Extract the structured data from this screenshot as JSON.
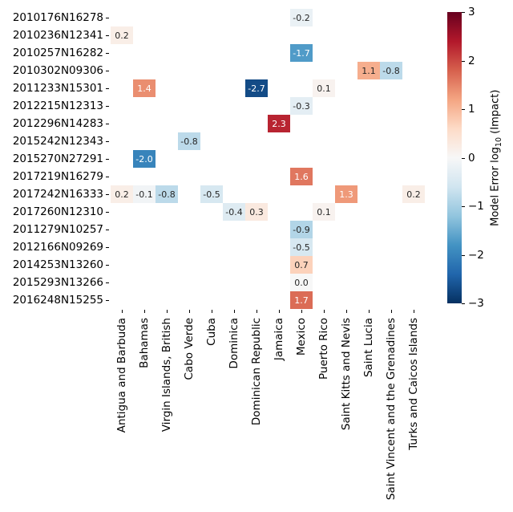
{
  "chart_data": {
    "type": "heatmap",
    "title": "",
    "xlabel": "",
    "ylabel": "",
    "grid": false,
    "background_color": "#ffffff",
    "vmin": -3,
    "vmax": 3,
    "colormap": "RdBu_r",
    "colormap_anchors": [
      "#053061",
      "#2166ac",
      "#4393c3",
      "#92c5de",
      "#d1e5f0",
      "#f7f7f7",
      "#fddbc7",
      "#f4a582",
      "#d6604d",
      "#b2182b",
      "#67001f"
    ],
    "annotation_text_dark": "#262626",
    "annotation_text_light": "#ffffff",
    "rows": [
      "2010176N16278",
      "2010236N12341",
      "2010257N16282",
      "2010302N09306",
      "2011233N15301",
      "2012215N12313",
      "2012296N14283",
      "2015242N12343",
      "2015270N27291",
      "2017219N16279",
      "2017242N16333",
      "2017260N12310",
      "2011279N10257",
      "2012166N09269",
      "2014253N13260",
      "2015293N13266",
      "2016248N15255"
    ],
    "columns": [
      "Antigua and Barbuda",
      "Bahamas",
      "Virgin Islands, British",
      "Cabo Verde",
      "Cuba",
      "Dominica",
      "Dominican Republic",
      "Jamaica",
      "Mexico",
      "Puerto Rico",
      "Saint Kitts and Nevis",
      "Saint Lucia",
      "Saint Vincent and the Grenadines",
      "Turks and Caicos Islands"
    ],
    "cells": [
      {
        "row": 0,
        "col": 8,
        "country": "Mexico",
        "value": -0.2,
        "label": "-0.2"
      },
      {
        "row": 1,
        "col": 0,
        "country": "Antigua and Barbuda",
        "value": 0.2,
        "label": "0.2"
      },
      {
        "row": 2,
        "col": 8,
        "country": "Mexico",
        "value": -1.7,
        "label": "-1.7"
      },
      {
        "row": 3,
        "col": 11,
        "country": "Saint Lucia",
        "value": 1.1,
        "label": "1.1"
      },
      {
        "row": 3,
        "col": 12,
        "country": "Saint Vincent and the Grenadines",
        "value": -0.8,
        "label": "-0.8"
      },
      {
        "row": 4,
        "col": 1,
        "country": "Bahamas",
        "value": 1.4,
        "label": "1.4"
      },
      {
        "row": 4,
        "col": 6,
        "country": "Dominican Republic",
        "value": -2.7,
        "label": "-2.7"
      },
      {
        "row": 4,
        "col": 9,
        "country": "Puerto Rico",
        "value": 0.1,
        "label": "0.1"
      },
      {
        "row": 5,
        "col": 8,
        "country": "Mexico",
        "value": -0.3,
        "label": "-0.3"
      },
      {
        "row": 6,
        "col": 7,
        "country": "Jamaica",
        "value": 2.3,
        "label": "2.3"
      },
      {
        "row": 7,
        "col": 3,
        "country": "Cabo Verde",
        "value": -0.8,
        "label": "-0.8"
      },
      {
        "row": 8,
        "col": 1,
        "country": "Bahamas",
        "value": -2.0,
        "label": "-2.0"
      },
      {
        "row": 9,
        "col": 8,
        "country": "Mexico",
        "value": 1.6,
        "label": "1.6"
      },
      {
        "row": 10,
        "col": 0,
        "country": "Antigua and Barbuda",
        "value": 0.2,
        "label": "0.2"
      },
      {
        "row": 10,
        "col": 1,
        "country": "Bahamas",
        "value": -0.1,
        "label": "-0.1"
      },
      {
        "row": 10,
        "col": 2,
        "country": "Virgin Islands, British",
        "value": -0.8,
        "label": "-0.8"
      },
      {
        "row": 10,
        "col": 4,
        "country": "Cuba",
        "value": -0.5,
        "label": "-0.5"
      },
      {
        "row": 10,
        "col": 10,
        "country": "Saint Kitts and Nevis",
        "value": 1.3,
        "label": "1.3"
      },
      {
        "row": 10,
        "col": 13,
        "country": "Turks and Caicos Islands",
        "value": 0.2,
        "label": "0.2"
      },
      {
        "row": 11,
        "col": 5,
        "country": "Dominica",
        "value": -0.4,
        "label": "-0.4"
      },
      {
        "row": 11,
        "col": 6,
        "country": "Dominican Republic",
        "value": 0.3,
        "label": "0.3"
      },
      {
        "row": 11,
        "col": 9,
        "country": "Puerto Rico",
        "value": 0.1,
        "label": "0.1"
      },
      {
        "row": 12,
        "col": 8,
        "country": "Mexico",
        "value": -0.9,
        "label": "-0.9"
      },
      {
        "row": 13,
        "col": 8,
        "country": "Mexico",
        "value": -0.5,
        "label": "-0.5"
      },
      {
        "row": 14,
        "col": 8,
        "country": "Mexico",
        "value": 0.7,
        "label": "0.7"
      },
      {
        "row": 15,
        "col": 8,
        "country": "Mexico",
        "value": 0.0,
        "label": "0.0"
      },
      {
        "row": 16,
        "col": 8,
        "country": "Mexico",
        "value": 1.7,
        "label": "1.7"
      }
    ],
    "colorbar": {
      "position": "right",
      "tick_values": [
        3,
        2,
        1,
        0,
        -1,
        -2,
        -3
      ],
      "tick_labels": [
        "3",
        "2",
        "1",
        "0",
        "−1",
        "−2",
        "−3"
      ],
      "label_prefix": "Model Error log",
      "label_sub": "10",
      "label_suffix": " (Impact)"
    }
  }
}
